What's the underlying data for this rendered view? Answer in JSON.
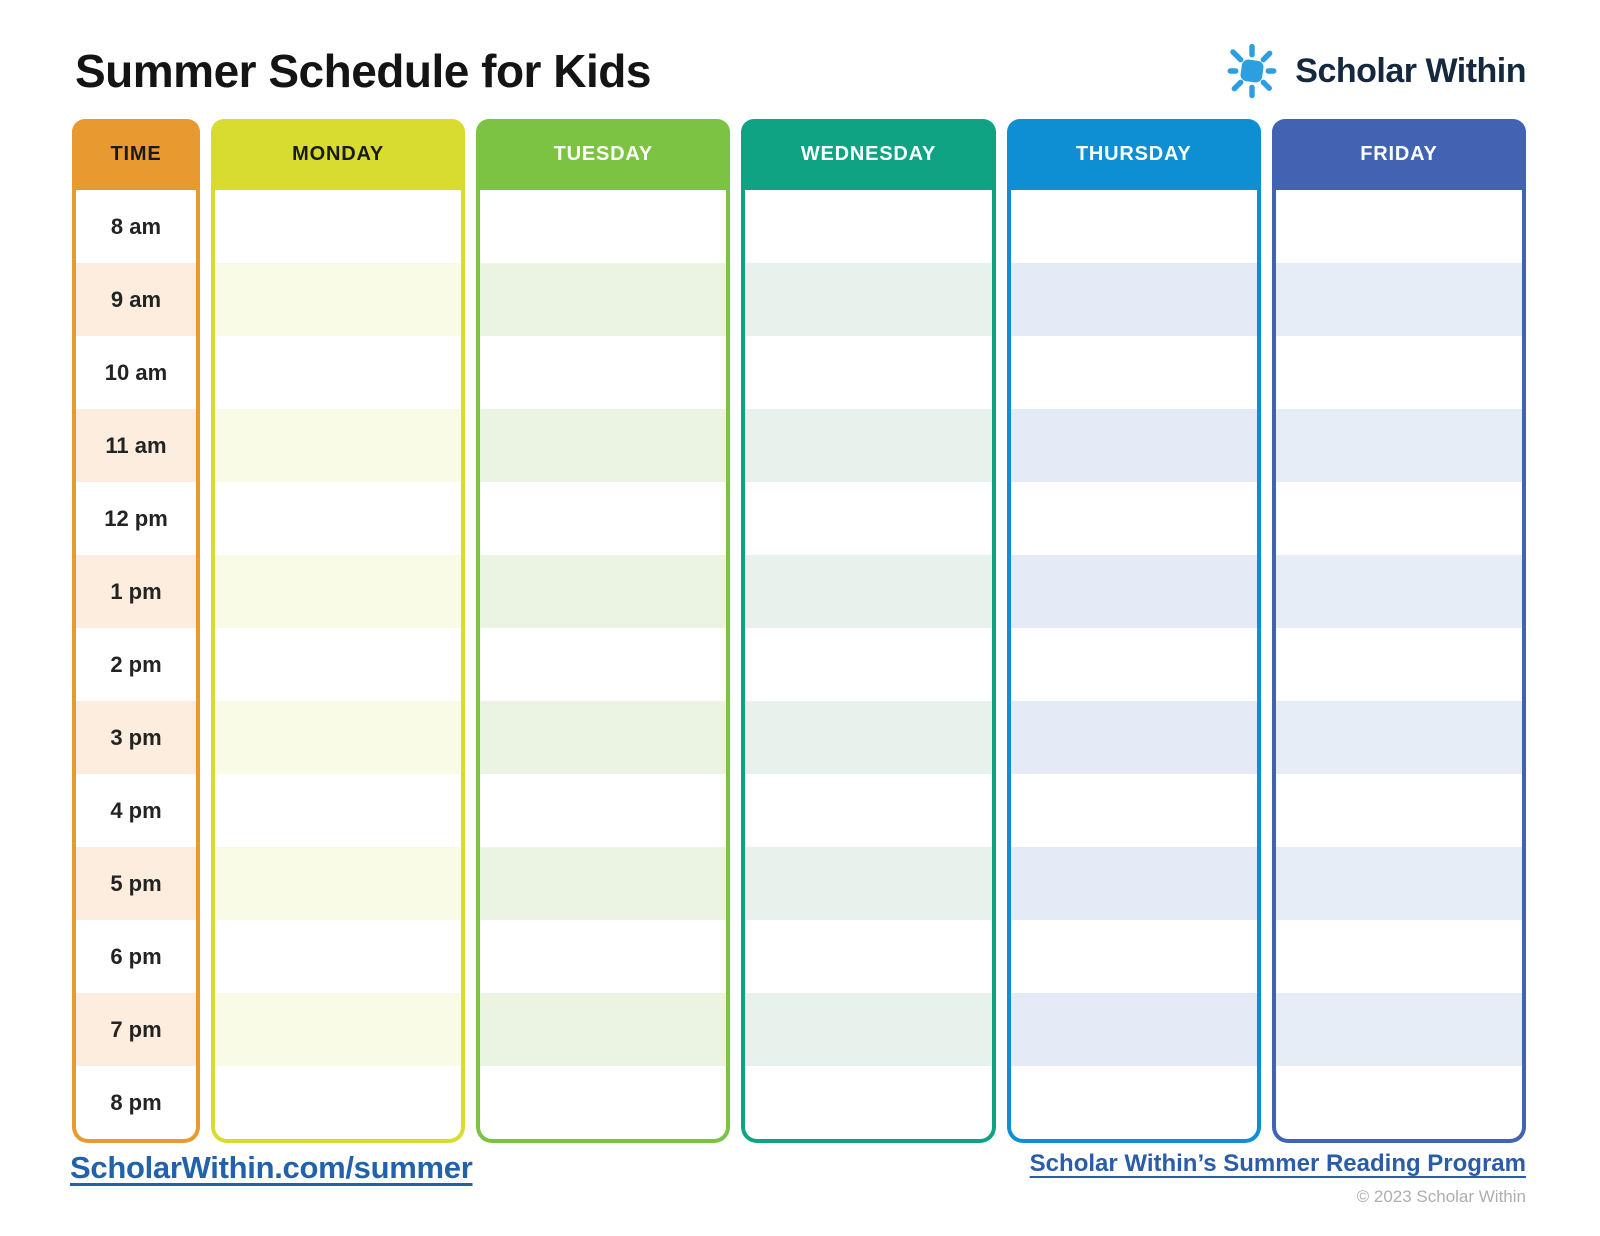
{
  "page": {
    "title": "Summer Schedule for Kids"
  },
  "brand": {
    "name": "Scholar Within",
    "sun_color": "#2D9FE0",
    "text_color": "#15293E"
  },
  "schedule": {
    "times": [
      "8 am",
      "9 am",
      "10 am",
      "11 am",
      "12 pm",
      "1 pm",
      "2 pm",
      "3 pm",
      "4 pm",
      "5 pm",
      "6 pm",
      "7 pm",
      "8 pm"
    ],
    "columns": [
      {
        "label": "TIME",
        "header_color": "#E8992F",
        "header_text_color": "#1A1A1A",
        "stripe_color": "#FCEDDF"
      },
      {
        "label": "MONDAY",
        "header_color": "#D7DC2F",
        "header_text_color": "#1A1A1A",
        "stripe_color": "#FAFBE7"
      },
      {
        "label": "TUESDAY",
        "header_color": "#7CC243",
        "header_text_color": "#FFFFFF",
        "stripe_color": "#EBF3E2"
      },
      {
        "label": "WEDNESDAY",
        "header_color": "#0FA384",
        "header_text_color": "#FFFFFF",
        "stripe_color": "#E7F2EC"
      },
      {
        "label": "THURSDAY",
        "header_color": "#0E8FD3",
        "header_text_color": "#FFFFFF",
        "stripe_color": "#E4EBF6"
      },
      {
        "label": "FRIDAY",
        "header_color": "#4163B2",
        "header_text_color": "#FFFFFF",
        "stripe_color": "#E7EDF7"
      }
    ]
  },
  "footer": {
    "left_link": "ScholarWithin.com/summer",
    "right_link": "Scholar Within’s Summer Reading Program",
    "copyright": "© 2023 Scholar Within"
  }
}
